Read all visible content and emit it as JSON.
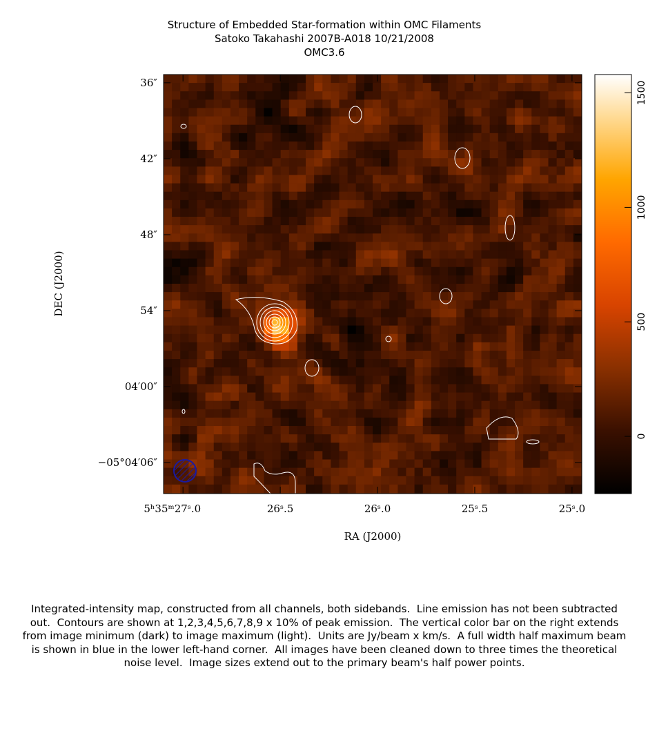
{
  "header": {
    "title": "Structure of Embedded Star-formation within OMC Filaments",
    "subtitle": "Satoko Takahashi   2007B-A018   10/21/2008",
    "source": "OMC3.6"
  },
  "chart_data": {
    "type": "image",
    "xlabel": "RA (J2000)",
    "ylabel": "DEC (J2000)",
    "xlim": [
      27.1,
      24.95
    ],
    "xticks": [
      {
        "value": 27.0,
        "label": "5ʰ35ᵐ27ˢ.0"
      },
      {
        "value": 26.5,
        "label": "26ˢ.5"
      },
      {
        "value": 26.0,
        "label": "26ˢ.0"
      },
      {
        "value": 25.5,
        "label": "25ˢ.5"
      },
      {
        "value": 25.0,
        "label": "25ˢ.0"
      }
    ],
    "ylim": [
      35.35,
      68.45
    ],
    "yticks": [
      {
        "value": 36,
        "label": "36″"
      },
      {
        "value": 42,
        "label": "42″"
      },
      {
        "value": 48,
        "label": "48″"
      },
      {
        "value": 54,
        "label": "54″"
      },
      {
        "value": 60,
        "label": "04′00″"
      },
      {
        "value": 66,
        "label": "−05°04′06″"
      }
    ],
    "colorbar_lim": [
      -250,
      1580
    ],
    "colorbar_ticks": [
      0,
      500,
      1000,
      1500
    ]
  },
  "caption": "Integrated-intensity map, constructed from all channels, both sidebands.  Line emission has not been subtracted out.  Contours are shown at 1,2,3,4,5,6,7,8,9 x 10% of peak emission.  The vertical color bar on the right extends from image minimum (dark) to image maximum (light).  Units are Jy/beam x km/s.  A full width half maximum beam is shown in blue in the lower left-hand corner.  All images have been cleaned down to three times the theoretical noise level.  Image sizes extend out to the primary beam's half power points."
}
